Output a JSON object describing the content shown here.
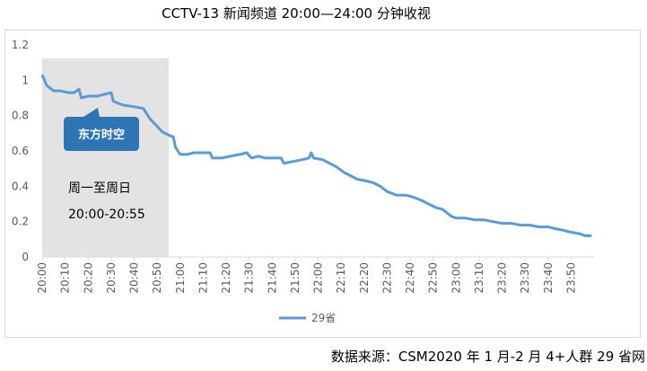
{
  "title": "CCTV-13 新闻频道 20:00—24:00 分钟收视",
  "source": "数据来源：CSM2020 年 1 月-2 月 4+人群 29 省网",
  "colors": {
    "line": "#5b9bd5",
    "shade": "#e3e3e3",
    "callout": "#2e75b6"
  },
  "annotations": {
    "callout": "东方时空",
    "shade_text_1": "周一至周日",
    "shade_text_2": "20:00-20:55"
  },
  "chart_data": {
    "type": "line",
    "title": "",
    "xlabel": "",
    "ylabel": "",
    "ylim": [
      0,
      1.2
    ],
    "yticks": [
      "0",
      "0.2",
      "0.4",
      "0.6",
      "0.8",
      "1",
      "1.2"
    ],
    "grid": false,
    "legend": "bottom-center",
    "x_tick_labels": [
      "20:00",
      "20:10",
      "20:20",
      "20:30",
      "20:40",
      "20:50",
      "21:00",
      "21:10",
      "21:20",
      "21:30",
      "21:40",
      "21:50",
      "22:00",
      "22:10",
      "22:20",
      "22:30",
      "22:40",
      "22:50",
      "23:00",
      "23:10",
      "23:20",
      "23:30",
      "23:40",
      "23:50"
    ],
    "shaded_range": [
      "20:00",
      "20:55"
    ],
    "series": [
      {
        "name": "29省",
        "points": [
          [
            "20:00",
            1.03
          ],
          [
            "20:02",
            0.97
          ],
          [
            "20:05",
            0.94
          ],
          [
            "20:08",
            0.94
          ],
          [
            "20:11",
            0.93
          ],
          [
            "20:14",
            0.93
          ],
          [
            "20:16",
            0.95
          ],
          [
            "20:17",
            0.9
          ],
          [
            "20:20",
            0.91
          ],
          [
            "20:24",
            0.91
          ],
          [
            "20:27",
            0.92
          ],
          [
            "20:30",
            0.93
          ],
          [
            "20:31",
            0.88
          ],
          [
            "20:35",
            0.86
          ],
          [
            "20:40",
            0.85
          ],
          [
            "20:44",
            0.84
          ],
          [
            "20:47",
            0.78
          ],
          [
            "20:50",
            0.74
          ],
          [
            "20:52",
            0.71
          ],
          [
            "20:55",
            0.69
          ],
          [
            "20:57",
            0.68
          ],
          [
            "20:58",
            0.62
          ],
          [
            "21:00",
            0.58
          ],
          [
            "21:03",
            0.58
          ],
          [
            "21:06",
            0.59
          ],
          [
            "21:10",
            0.59
          ],
          [
            "21:13",
            0.59
          ],
          [
            "21:14",
            0.56
          ],
          [
            "21:18",
            0.56
          ],
          [
            "21:22",
            0.57
          ],
          [
            "21:26",
            0.58
          ],
          [
            "21:29",
            0.59
          ],
          [
            "21:31",
            0.56
          ],
          [
            "21:34",
            0.57
          ],
          [
            "21:37",
            0.56
          ],
          [
            "21:40",
            0.56
          ],
          [
            "21:44",
            0.56
          ],
          [
            "21:45",
            0.53
          ],
          [
            "21:49",
            0.54
          ],
          [
            "21:53",
            0.55
          ],
          [
            "21:56",
            0.56
          ],
          [
            "21:57",
            0.59
          ],
          [
            "21:58",
            0.56
          ],
          [
            "22:02",
            0.55
          ],
          [
            "22:05",
            0.53
          ],
          [
            "22:08",
            0.51
          ],
          [
            "22:11",
            0.48
          ],
          [
            "22:14",
            0.46
          ],
          [
            "22:17",
            0.44
          ],
          [
            "22:21",
            0.43
          ],
          [
            "22:24",
            0.42
          ],
          [
            "22:27",
            0.4
          ],
          [
            "22:30",
            0.37
          ],
          [
            "22:34",
            0.35
          ],
          [
            "22:38",
            0.35
          ],
          [
            "22:41",
            0.34
          ],
          [
            "22:45",
            0.32
          ],
          [
            "22:48",
            0.3
          ],
          [
            "22:51",
            0.28
          ],
          [
            "22:54",
            0.27
          ],
          [
            "22:56",
            0.25
          ],
          [
            "22:58",
            0.23
          ],
          [
            "23:00",
            0.22
          ],
          [
            "23:04",
            0.22
          ],
          [
            "23:08",
            0.21
          ],
          [
            "23:12",
            0.21
          ],
          [
            "23:16",
            0.2
          ],
          [
            "23:20",
            0.19
          ],
          [
            "23:24",
            0.19
          ],
          [
            "23:28",
            0.18
          ],
          [
            "23:32",
            0.18
          ],
          [
            "23:36",
            0.17
          ],
          [
            "23:40",
            0.17
          ],
          [
            "23:43",
            0.16
          ],
          [
            "23:47",
            0.15
          ],
          [
            "23:50",
            0.14
          ],
          [
            "23:54",
            0.13
          ],
          [
            "23:56",
            0.12
          ],
          [
            "23:59",
            0.12
          ]
        ]
      }
    ]
  }
}
